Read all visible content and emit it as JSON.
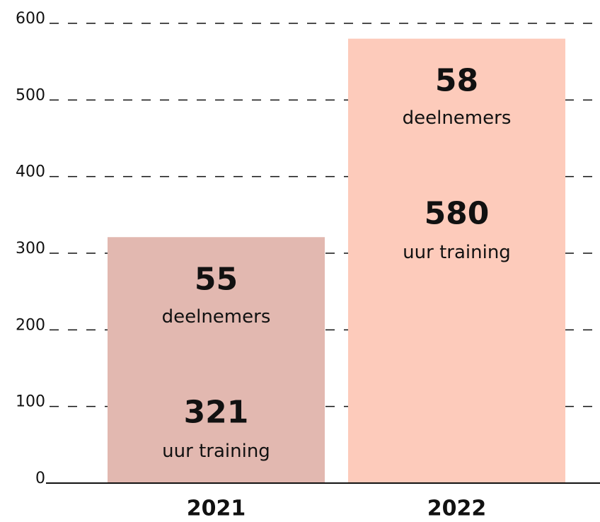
{
  "chart_data": {
    "type": "bar",
    "categories": [
      "2021",
      "2022"
    ],
    "values": [
      321,
      580
    ],
    "colors": [
      "#e2b8b0",
      "#fdcbbb"
    ],
    "value_caption": "uur training",
    "participants": [
      55,
      58
    ],
    "participants_caption": "deelnemers",
    "ylim": [
      0,
      600
    ],
    "yticks": [
      0,
      100,
      200,
      300,
      400,
      500,
      600
    ],
    "grid": true
  }
}
